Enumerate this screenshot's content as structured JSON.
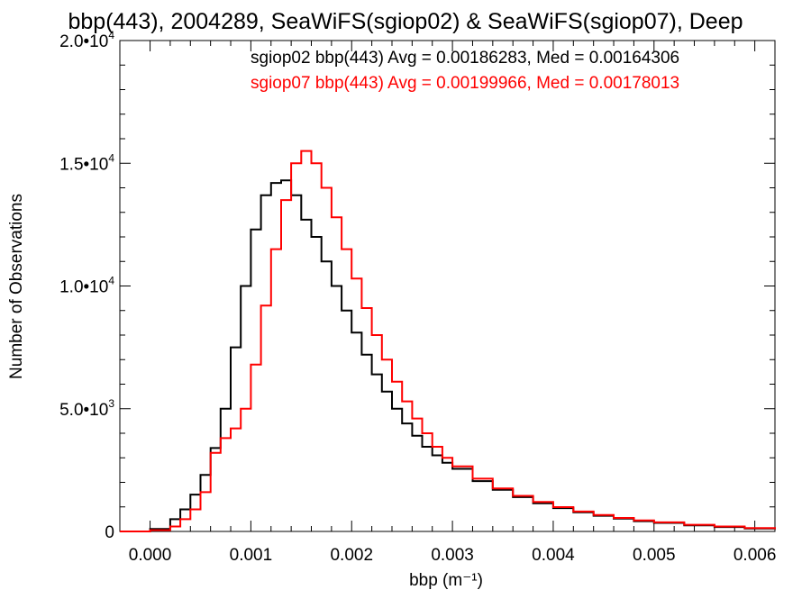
{
  "chart_data": {
    "type": "line",
    "title": "bbp(443), 2004289, SeaWiFS(sgiop02) & SeaWiFS(sgiop07), Deep",
    "xlabel": "bbp (m⁻¹)",
    "ylabel": "Number of Observations",
    "xlim": [
      -0.0003,
      0.0062
    ],
    "ylim": [
      0,
      20000
    ],
    "x_ticks": [
      "0.000",
      "0.001",
      "0.002",
      "0.003",
      "0.004",
      "0.005",
      "0.006"
    ],
    "x_tick_values": [
      0,
      0.001,
      0.002,
      0.003,
      0.004,
      0.005,
      0.006
    ],
    "y_ticks": [
      {
        "value": 0,
        "mantissa": "0",
        "exponent": ""
      },
      {
        "value": 5000,
        "mantissa": "5.0•1",
        "exponent": "3"
      },
      {
        "value": 10000,
        "mantissa": "1.0•1",
        "exponent": "4"
      },
      {
        "value": 15000,
        "mantissa": "1.5•1",
        "exponent": "4"
      },
      {
        "value": 20000,
        "mantissa": "2.0•1",
        "exponent": "4"
      }
    ],
    "y_tick_suffix": "0",
    "grid": false,
    "step": true,
    "series": [
      {
        "name": "sgiop02 bbp(443)",
        "legend": "sgiop02 bbp(443) Avg = 0.00186283, Med = 0.00164306",
        "color": "#000000",
        "x": [
          -0.0003,
          0.0,
          0.0002,
          0.0003,
          0.0004,
          0.0005,
          0.0006,
          0.0007,
          0.0008,
          0.0009,
          0.001,
          0.0011,
          0.0012,
          0.0013,
          0.0014,
          0.0015,
          0.0016,
          0.0017,
          0.0018,
          0.0019,
          0.002,
          0.0021,
          0.0022,
          0.0023,
          0.0024,
          0.0025,
          0.0026,
          0.0027,
          0.0028,
          0.0029,
          0.003,
          0.0032,
          0.0034,
          0.0036,
          0.0038,
          0.004,
          0.0042,
          0.0044,
          0.0046,
          0.0048,
          0.005,
          0.0053,
          0.0056,
          0.0059,
          0.0062
        ],
        "y": [
          0,
          100,
          500,
          900,
          1500,
          2300,
          3400,
          5000,
          7500,
          10000,
          12300,
          13700,
          14200,
          14300,
          13700,
          12700,
          12000,
          11000,
          10000,
          9000,
          8100,
          7200,
          6400,
          5700,
          5000,
          4400,
          3900,
          3450,
          3100,
          2800,
          2550,
          2050,
          1700,
          1400,
          1150,
          950,
          780,
          640,
          520,
          420,
          350,
          250,
          180,
          120,
          80
        ]
      },
      {
        "name": "sgiop07 bbp(443)",
        "legend": "sgiop07 bbp(443) Avg = 0.00199966, Med = 0.00178013",
        "color": "#ff0000",
        "x": [
          -0.0003,
          0.0,
          0.0002,
          0.0003,
          0.0004,
          0.0005,
          0.0006,
          0.0007,
          0.0008,
          0.0009,
          0.001,
          0.0011,
          0.0012,
          0.0013,
          0.0014,
          0.0015,
          0.0016,
          0.0017,
          0.0018,
          0.0019,
          0.002,
          0.0021,
          0.0022,
          0.0023,
          0.0024,
          0.0025,
          0.0026,
          0.0027,
          0.0028,
          0.0029,
          0.003,
          0.0032,
          0.0034,
          0.0036,
          0.0038,
          0.004,
          0.0042,
          0.0044,
          0.0046,
          0.0048,
          0.005,
          0.0053,
          0.0056,
          0.0059,
          0.0062
        ],
        "y": [
          0,
          50,
          200,
          500,
          900,
          1600,
          3200,
          3800,
          4200,
          5000,
          6800,
          9200,
          11500,
          13500,
          15000,
          15500,
          15000,
          14000,
          12800,
          11500,
          10300,
          9100,
          8000,
          7000,
          6100,
          5300,
          4600,
          4000,
          3450,
          3000,
          2650,
          2150,
          1750,
          1450,
          1200,
          990,
          810,
          670,
          550,
          450,
          370,
          270,
          200,
          140,
          90
        ]
      }
    ]
  }
}
